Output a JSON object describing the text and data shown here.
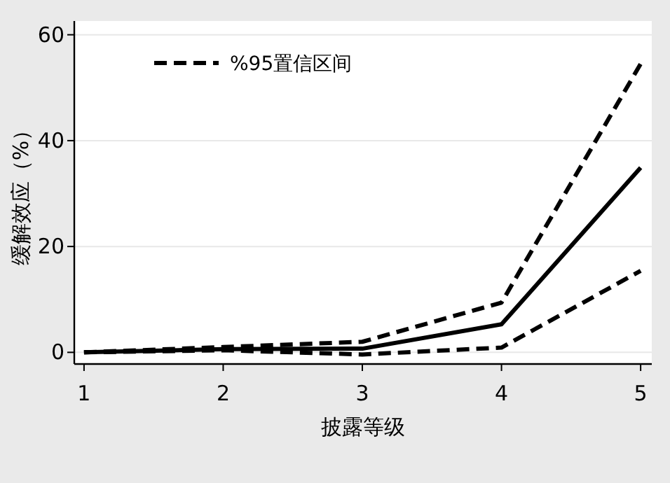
{
  "chart_data": {
    "type": "line",
    "xlabel": "披露等级",
    "ylabel": "缓解效应（%）",
    "x": [
      1,
      2,
      3,
      4,
      5
    ],
    "xlim": [
      0.93,
      5.08
    ],
    "xticks": [
      1,
      2,
      3,
      4,
      5
    ],
    "ylim": [
      -2.2,
      62.6
    ],
    "yticks": [
      0,
      20,
      40,
      60
    ],
    "grid": "y",
    "legend": "top left",
    "series": [
      {
        "color": "#000000",
        "line_style": "solid",
        "values": [
          0,
          0.6,
          0.7,
          5.3,
          34.9
        ]
      },
      {
        "name": "%95置信区间",
        "color": "#000000",
        "line_style": "dashed",
        "values": [
          0,
          1,
          2,
          9.4,
          54.5
        ]
      },
      {
        "color": "#000000",
        "line_style": "dashed",
        "values": [
          0,
          0.4,
          -0.4,
          0.9,
          15.4
        ]
      }
    ]
  }
}
